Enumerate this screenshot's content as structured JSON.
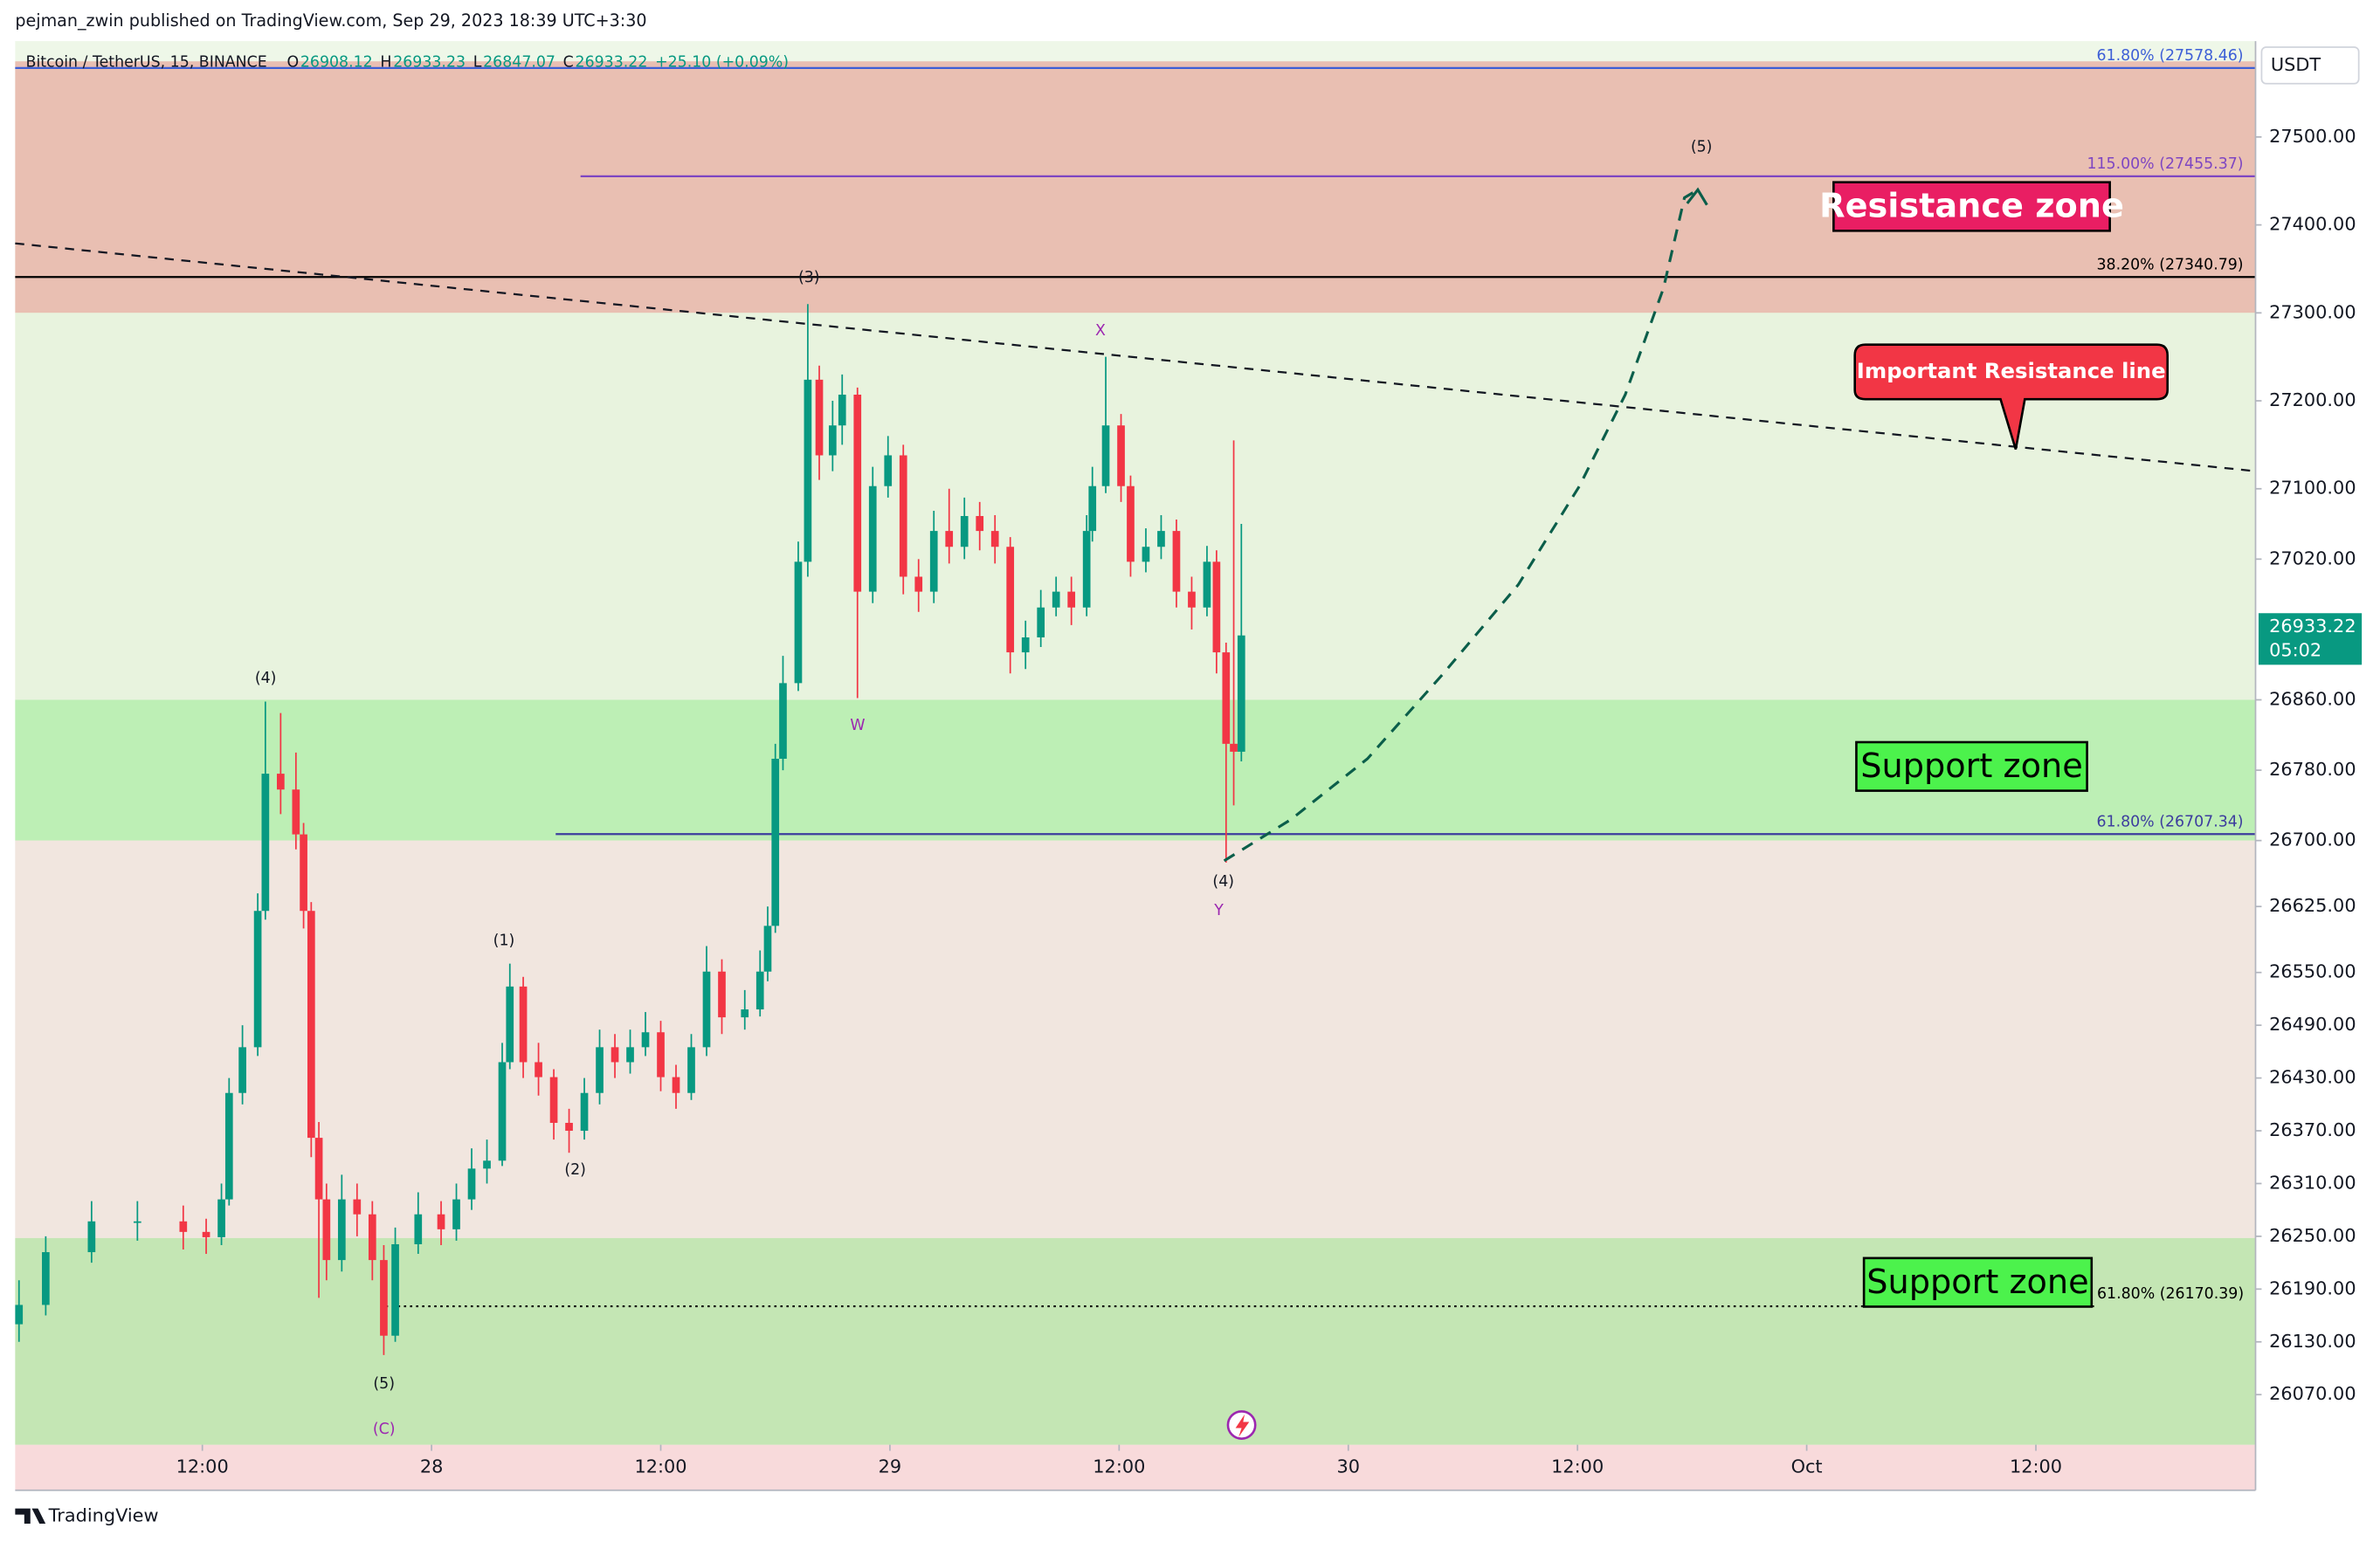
{
  "chart_data": {
    "type": "candlestick",
    "publisher": "pejman_zwin published on TradingView.com, Sep 29, 2023 18:39 UTC+3:30",
    "symbol": "Bitcoin / TetherUS, 15, BINANCE",
    "ohlc": [
      {
        "label": "O",
        "value": "26908.12"
      },
      {
        "label": "H",
        "value": "26933.23"
      },
      {
        "label": "L",
        "value": "26847.07"
      },
      {
        "label": "C",
        "value": "26933.22"
      }
    ],
    "change": "+25.10 (+0.09%)",
    "currency": "USDT",
    "countdown": "05:02",
    "brand": "TradingView",
    "up_color": "#089981",
    "down_color": "#f23645",
    "xlim": [
      -21.8,
      95.5
    ],
    "ylim": [
      26013,
      27609
    ],
    "xticks": [
      {
        "value": -12,
        "label": "12:00"
      },
      {
        "value": 0,
        "label": "28"
      },
      {
        "value": 12,
        "label": "12:00"
      },
      {
        "value": 24,
        "label": "29"
      },
      {
        "value": 36,
        "label": "12:00"
      },
      {
        "value": 48,
        "label": "30"
      },
      {
        "value": 60,
        "label": "12:00"
      },
      {
        "value": 72,
        "label": "Oct"
      },
      {
        "value": 84,
        "label": "12:00"
      }
    ],
    "yticks": [
      {
        "value": 27500,
        "label": "27500.00"
      },
      {
        "value": 27400,
        "label": "27400.00"
      },
      {
        "value": 27300,
        "label": "27300.00"
      },
      {
        "value": 27200,
        "label": "27200.00"
      },
      {
        "value": 27100,
        "label": "27100.00"
      },
      {
        "value": 27020,
        "label": "27020.00"
      },
      {
        "value": 26860,
        "label": "26860.00"
      },
      {
        "value": 26780,
        "label": "26780.00"
      },
      {
        "value": 26700,
        "label": "26700.00"
      },
      {
        "value": 26625,
        "label": "26625.00"
      },
      {
        "value": 26550,
        "label": "26550.00"
      },
      {
        "value": 26490,
        "label": "26490.00"
      },
      {
        "value": 26430,
        "label": "26430.00"
      },
      {
        "value": 26370,
        "label": "26370.00"
      },
      {
        "value": 26310,
        "label": "26310.00"
      },
      {
        "value": 26250,
        "label": "26250.00"
      },
      {
        "value": 26190,
        "label": "26190.00"
      },
      {
        "value": 26130,
        "label": "26130.00"
      },
      {
        "value": 26070,
        "label": "26070.00"
      }
    ],
    "x": [
      -21.6,
      -20.2,
      -17.8,
      -15.4,
      -13.0,
      -11.8,
      -11.0,
      -10.6,
      -9.9,
      -9.1,
      -8.7,
      -7.9,
      -7.1,
      -6.7,
      -6.3,
      -5.9,
      -5.5,
      -4.7,
      -3.9,
      -3.1,
      -2.5,
      -1.9,
      -0.7,
      0.5,
      1.3,
      2.1,
      2.9,
      3.7,
      4.1,
      4.8,
      5.6,
      6.4,
      7.2,
      8.0,
      8.8,
      9.6,
      10.4,
      11.2,
      12.0,
      12.8,
      13.6,
      14.4,
      15.2,
      16.4,
      17.2,
      17.6,
      18.0,
      18.4,
      19.2,
      19.7,
      20.3,
      21.0,
      21.5,
      22.3,
      23.1,
      23.9,
      24.7,
      25.5,
      26.3,
      27.1,
      27.9,
      28.7,
      29.5,
      30.3,
      31.1,
      31.9,
      32.7,
      33.5,
      34.3,
      34.6,
      35.3,
      36.1,
      36.6,
      37.4,
      38.2,
      39.0,
      39.8,
      40.6,
      41.1,
      41.6,
      42.0,
      42.4
    ],
    "open": [
      26150,
      26172,
      26232,
      26267,
      26267,
      26255,
      26249,
      26292,
      26413,
      26465,
      26620,
      26776,
      26758,
      26707,
      26620,
      26362,
      26292,
      26223,
      26292,
      26275,
      26223,
      26137,
      26241,
      26275,
      26258,
      26292,
      26327,
      26336,
      26448,
      26534,
      26448,
      26431,
      26379,
      26370,
      26413,
      26465,
      26448,
      26465,
      26482,
      26431,
      26413,
      26465,
      26551,
      26499,
      26508,
      26551,
      26603,
      26793,
      26879,
      27017,
      27224,
      27138,
      27172,
      27207,
      26983,
      27103,
      27138,
      27000,
      26983,
      27052,
      27034,
      27069,
      27052,
      27034,
      26914,
      26931,
      26965,
      26983,
      26965,
      27052,
      27103,
      27172,
      27103,
      27017,
      27034,
      27052,
      26983,
      26965,
      27017,
      26914,
      26810,
      26801
    ],
    "high": [
      26200,
      26250,
      26290,
      26290,
      26285,
      26270,
      26310,
      26430,
      26490,
      26640,
      26858,
      26845,
      26800,
      26720,
      26630,
      26380,
      26310,
      26320,
      26310,
      26290,
      26240,
      26260,
      26300,
      26290,
      26310,
      26350,
      26360,
      26470,
      26560,
      26545,
      26470,
      26440,
      26395,
      26430,
      26485,
      26480,
      26485,
      26505,
      26495,
      26445,
      26480,
      26580,
      26565,
      26530,
      26575,
      26625,
      26810,
      26910,
      27040,
      27310,
      27240,
      27200,
      27230,
      27215,
      27125,
      27160,
      27150,
      27020,
      27075,
      27100,
      27090,
      27085,
      27070,
      27045,
      26950,
      26985,
      27000,
      27000,
      27070,
      27125,
      27250,
      27185,
      27115,
      27055,
      27070,
      27065,
      27000,
      27035,
      27030,
      26925,
      27155,
      27060
    ],
    "low": [
      26130,
      26160,
      26220,
      26245,
      26235,
      26230,
      26240,
      26285,
      26400,
      26455,
      26610,
      26730,
      26690,
      26600,
      26340,
      26180,
      26200,
      26210,
      26250,
      26200,
      26115,
      26130,
      26230,
      26240,
      26245,
      26280,
      26310,
      26330,
      26440,
      26430,
      26410,
      26360,
      26345,
      26360,
      26400,
      26430,
      26435,
      26455,
      26415,
      26395,
      26405,
      26455,
      26480,
      26485,
      26500,
      26540,
      26595,
      26780,
      26870,
      27000,
      27110,
      27120,
      27150,
      26862,
      26970,
      27090,
      26980,
      26960,
      26970,
      27015,
      27020,
      27030,
      27015,
      26890,
      26895,
      26920,
      26955,
      26945,
      26955,
      27040,
      27095,
      27085,
      27000,
      27005,
      27020,
      26965,
      26940,
      26955,
      26890,
      26675,
      26740,
      26790
    ],
    "close": [
      26172,
      26232,
      26267,
      26267,
      26255,
      26249,
      26292,
      26413,
      26465,
      26620,
      26776,
      26758,
      26707,
      26620,
      26362,
      26292,
      26223,
      26292,
      26275,
      26223,
      26137,
      26241,
      26275,
      26258,
      26292,
      26327,
      26336,
      26448,
      26534,
      26448,
      26431,
      26379,
      26370,
      26413,
      26465,
      26448,
      26465,
      26482,
      26431,
      26413,
      26465,
      26551,
      26499,
      26508,
      26551,
      26603,
      26793,
      26879,
      27017,
      27224,
      27138,
      27172,
      27207,
      26983,
      27103,
      27138,
      27000,
      26983,
      27052,
      27034,
      27069,
      27052,
      27034,
      26914,
      26931,
      26965,
      26983,
      26965,
      27052,
      27103,
      27172,
      27103,
      27017,
      27034,
      27052,
      26983,
      26965,
      27017,
      26914,
      26810,
      26801,
      26933.22
    ],
    "zones": [
      {
        "from": 27300,
        "to": 27586,
        "color": "#e9bfb2"
      },
      {
        "from": 26860,
        "to": 27300,
        "color": "#e8f3de"
      },
      {
        "from": 26700,
        "to": 26860,
        "color": "#bdefb5"
      },
      {
        "from": 26248,
        "to": 26700,
        "color": "#f1e6df"
      },
      {
        "from": 26013,
        "to": 26248,
        "color": "#c4e6b4"
      }
    ],
    "levels": [
      {
        "value": 27578.46,
        "label": "61.80% (27578.46)",
        "color": "#3d5fd6",
        "from": -21.8,
        "to": 95.5,
        "dash": false
      },
      {
        "value": 27455.37,
        "label": "115.00% (27455.37)",
        "color": "#7e46c2",
        "from": 7.8,
        "to": 95.5,
        "dash": false
      },
      {
        "value": 27340.79,
        "label": "38.20% (27340.79)",
        "color": "#000000",
        "from": -21.8,
        "to": 95.5,
        "dash": false
      },
      {
        "value": 26707.34,
        "label": "61.80% (26707.34)",
        "color": "#3d3d9e",
        "from": 6.5,
        "to": 95.5,
        "dash": false
      },
      {
        "value": 26170.39,
        "label": "61.80% (26170.39)",
        "color": "#000000",
        "from": -2.4,
        "to": 87.1,
        "dash": true
      }
    ],
    "trendline": {
      "x": [
        -21.8,
        95.5
      ],
      "y": [
        27379,
        27120
      ]
    },
    "projection": {
      "x": [
        41.5,
        45.0,
        49.0,
        52.9,
        56.9,
        60.1,
        62.5,
        64.5,
        65.6,
        66.3
      ],
      "y": [
        26677,
        26724,
        26793,
        26888,
        26991,
        27103,
        27207,
        27328,
        27431,
        27440
      ]
    },
    "waves": [
      {
        "text": "(4)",
        "color": "#131722"
      },
      {
        "text": "(5)",
        "color": "#131722"
      },
      {
        "text": "(C)",
        "color": "#9c27b0"
      },
      {
        "text": "(1)",
        "color": "#131722"
      },
      {
        "text": "(2)",
        "color": "#131722"
      },
      {
        "text": "(3)",
        "color": "#131722"
      },
      {
        "text": "W",
        "color": "#9c27b0"
      },
      {
        "text": "X",
        "color": "#9c27b0"
      },
      {
        "text": "(4)",
        "color": "#131722"
      },
      {
        "text": "Y",
        "color": "#9c27b0"
      },
      {
        "text": "(5)",
        "color": "#131722"
      }
    ],
    "annotations": {
      "resistance_zone": "Resistance zone",
      "resistance_line": "Important Resistance line",
      "support_zone_1": "Support zone",
      "support_zone_2": "Support zone"
    }
  }
}
